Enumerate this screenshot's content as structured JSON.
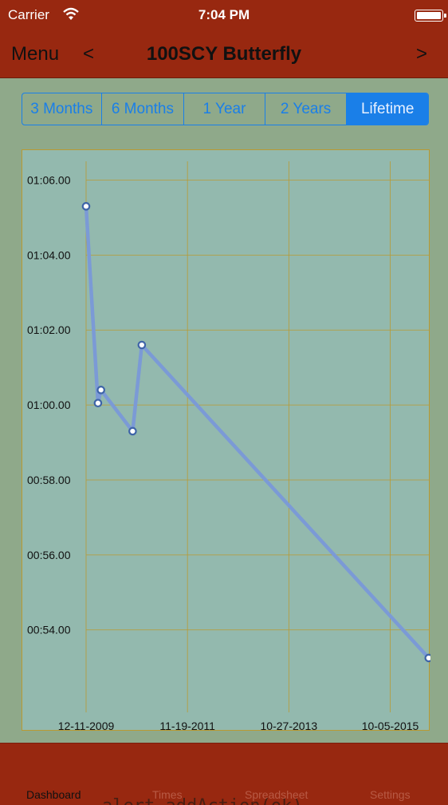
{
  "status_bar": {
    "carrier": "Carrier",
    "time": "7:04 PM"
  },
  "nav": {
    "menu_label": "Menu",
    "prev_label": "<",
    "title": "100SCY Butterfly",
    "next_label": ">"
  },
  "range_selector": {
    "options": [
      "3 Months",
      "6 Months",
      "1 Year",
      "2 Years",
      "Lifetime"
    ],
    "selected": "Lifetime"
  },
  "chart_data": {
    "type": "line",
    "title": "",
    "xlabel": "",
    "ylabel": "",
    "x_tick_labels": [
      "12-11-2009",
      "11-19-2011",
      "10-27-2013",
      "10-05-2015"
    ],
    "y_tick_labels": [
      "01:06.00",
      "01:04.00",
      "01:02.00",
      "01:00.00",
      "00:58.00",
      "00:56.00",
      "00:54.00"
    ],
    "y_tick_values_seconds": [
      66,
      64,
      62,
      60,
      58,
      56,
      54
    ],
    "ylim_seconds": [
      51.8,
      66.5
    ],
    "x_range": [
      "12-11-2009",
      "2016-07"
    ],
    "grid": true,
    "series": [
      {
        "color": "#7b9ad6",
        "points": [
          {
            "x": "2009-12-11",
            "y": 65.3
          },
          {
            "x": "2010-03-04",
            "y": 60.05
          },
          {
            "x": "2010-03-25",
            "y": 60.4
          },
          {
            "x": "2010-11-01",
            "y": 59.3
          },
          {
            "x": "2011-01-04",
            "y": 61.6
          },
          {
            "x": "2016-06-30",
            "y": 53.25
          }
        ]
      }
    ]
  },
  "tab_bar": {
    "tabs": [
      {
        "label": "Dashboard",
        "active": true
      },
      {
        "label": "Times",
        "active": false
      },
      {
        "label": "Spreadsheet",
        "active": false
      },
      {
        "label": "Settings",
        "active": false
      }
    ],
    "overlay_text": "alert.addAction(ok)"
  },
  "colors": {
    "bar_red": "#982810",
    "background": "#8fa98a",
    "chart_bg": "#93b9ae",
    "grid": "#b89a33",
    "accent_blue": "#1a7fe8"
  }
}
